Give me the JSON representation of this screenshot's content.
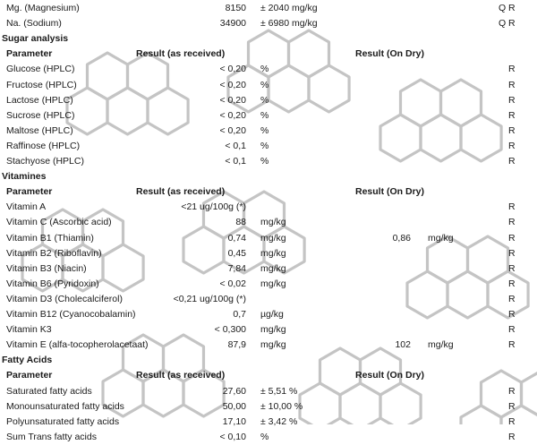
{
  "top_rows": [
    {
      "parameter": "Mg. (Magnesium)",
      "value": "8150",
      "unit": "± 2040 mg/kg",
      "dry_value": "",
      "dry_unit": "",
      "q": "Q",
      "r": "R"
    },
    {
      "parameter": "Na. (Sodium)",
      "value": "34900",
      "unit": "± 6980 mg/kg",
      "dry_value": "",
      "dry_unit": "",
      "q": "Q",
      "r": "R"
    }
  ],
  "sections": [
    {
      "title": "Sugar analysis",
      "header": {
        "parameter": "Parameter",
        "as_received": "Result (as received)",
        "on_dry": "Result (On Dry)"
      },
      "rows": [
        {
          "parameter": "Glucose (HPLC)",
          "value": "< 0,20",
          "unit": "%",
          "dry_value": "",
          "dry_unit": "",
          "r": "R"
        },
        {
          "parameter": "Fructose (HPLC)",
          "value": "< 0,20",
          "unit": "%",
          "dry_value": "",
          "dry_unit": "",
          "r": "R"
        },
        {
          "parameter": "Lactose (HPLC)",
          "value": "< 0,20",
          "unit": "%",
          "dry_value": "",
          "dry_unit": "",
          "r": "R"
        },
        {
          "parameter": "Sucrose (HPLC)",
          "value": "< 0,20",
          "unit": "%",
          "dry_value": "",
          "dry_unit": "",
          "r": "R"
        },
        {
          "parameter": "Maltose (HPLC)",
          "value": "< 0,20",
          "unit": "%",
          "dry_value": "",
          "dry_unit": "",
          "r": "R"
        },
        {
          "parameter": "Raffinose (HPLC)",
          "value": "< 0,1",
          "unit": "%",
          "dry_value": "",
          "dry_unit": "",
          "r": "R"
        },
        {
          "parameter": "Stachyose (HPLC)",
          "value": "< 0,1",
          "unit": "%",
          "dry_value": "",
          "dry_unit": "",
          "r": "R"
        }
      ]
    },
    {
      "title": "Vitamines",
      "header": {
        "parameter": "Parameter",
        "as_received": "Result (as received)",
        "on_dry": "Result (On Dry)"
      },
      "rows": [
        {
          "parameter": "Vitamin A",
          "value": "<21 ug/100g (*)",
          "unit": "",
          "dry_value": "",
          "dry_unit": "",
          "r": "R"
        },
        {
          "parameter": "Vitamin C (Ascorbic acid)",
          "value": "88",
          "unit": "mg/kg",
          "dry_value": "",
          "dry_unit": "",
          "r": "R"
        },
        {
          "parameter": "Vitamin B1 (Thiamin)",
          "value": "0,74",
          "unit": "mg/kg",
          "dry_value": "0,86",
          "dry_unit": "mg/kg",
          "r": "R"
        },
        {
          "parameter": "Vitamin B2 (Riboflavin)",
          "value": "0,45",
          "unit": "mg/kg",
          "dry_value": "",
          "dry_unit": "",
          "r": "R"
        },
        {
          "parameter": "Vitamin B3 (Niacin)",
          "value": "7,84",
          "unit": "mg/kg",
          "dry_value": "",
          "dry_unit": "",
          "r": "R"
        },
        {
          "parameter": "Vitamin B6 (Pyridoxin)",
          "value": "< 0,02",
          "unit": "mg/kg",
          "dry_value": "",
          "dry_unit": "",
          "r": "R"
        },
        {
          "parameter": "Vitamin D3 (Cholecalciferol)",
          "value": "<0,21 ug/100g (*)",
          "unit": "",
          "dry_value": "",
          "dry_unit": "",
          "r": "R"
        },
        {
          "parameter": "Vitamin B12 (Cyanocobalamin)",
          "value": "0,7",
          "unit": "µg/kg",
          "dry_value": "",
          "dry_unit": "",
          "r": "R"
        },
        {
          "parameter": "Vitamin K3",
          "value": "< 0,300",
          "unit": "mg/kg",
          "dry_value": "",
          "dry_unit": "",
          "r": "R"
        },
        {
          "parameter": "Vitamin E (alfa-tocopherolacetaat)",
          "value": "87,9",
          "unit": "mg/kg",
          "dry_value": "102",
          "dry_unit": "mg/kg",
          "r": "R"
        }
      ]
    },
    {
      "title": "Fatty Acids",
      "header": {
        "parameter": "Parameter",
        "as_received": "Result (as received)",
        "on_dry": "Result (On Dry)"
      },
      "rows": [
        {
          "parameter": "Saturated fatty acids",
          "value": "27,60",
          "unit": "± 5,51 %",
          "dry_value": "",
          "dry_unit": "",
          "r": "R"
        },
        {
          "parameter": "Monounsaturated fatty acids",
          "value": "50,00",
          "unit": "± 10,00 %",
          "dry_value": "",
          "dry_unit": "",
          "r": "R"
        },
        {
          "parameter": "Polyunsaturated fatty acids",
          "value": "17,10",
          "unit": "± 3,42 %",
          "dry_value": "",
          "dry_unit": "",
          "r": "R"
        },
        {
          "parameter": "Sum Trans fatty acids",
          "value": "< 0,10",
          "unit": "%",
          "dry_value": "",
          "dry_unit": "",
          "r": "R"
        }
      ]
    }
  ],
  "colors": {
    "text": "#1a1a1a",
    "watermark": "#c4c4c4"
  }
}
